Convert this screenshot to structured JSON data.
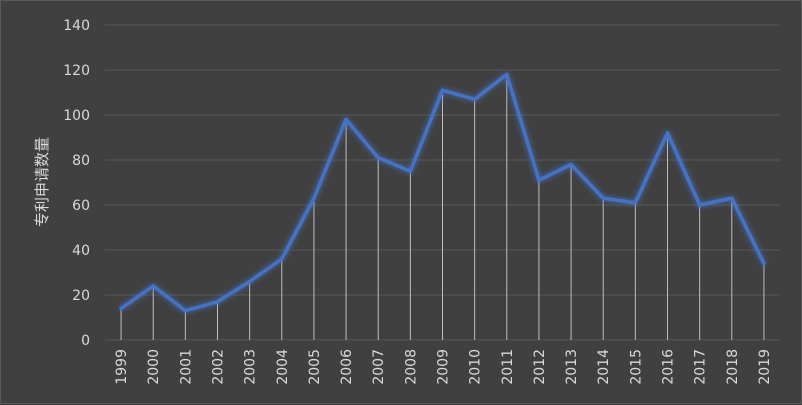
{
  "chart_data": {
    "type": "line",
    "title": "",
    "xlabel": "",
    "ylabel": "专利申请数量",
    "ylim": [
      0,
      140
    ],
    "yticks": [
      0,
      20,
      40,
      60,
      80,
      100,
      120,
      140
    ],
    "grid": true,
    "drop_lines": true,
    "x": [
      "1999",
      "2000",
      "2001",
      "2002",
      "2003",
      "2004",
      "2005",
      "2006",
      "2007",
      "2008",
      "2009",
      "2010",
      "2011",
      "2012",
      "2013",
      "2014",
      "2015",
      "2016",
      "2017",
      "2018",
      "2019"
    ],
    "series": [
      {
        "values": [
          14,
          24,
          13,
          17,
          26,
          36,
          63,
          98,
          81,
          75,
          111,
          107,
          118,
          71,
          78,
          63,
          61,
          92,
          60,
          63,
          34
        ],
        "color": "#4472c4"
      }
    ],
    "colors": {
      "background": "#404040",
      "gridline": "#595959",
      "drop_line": "#bfbfbf",
      "text": "#d9d9d9"
    }
  }
}
